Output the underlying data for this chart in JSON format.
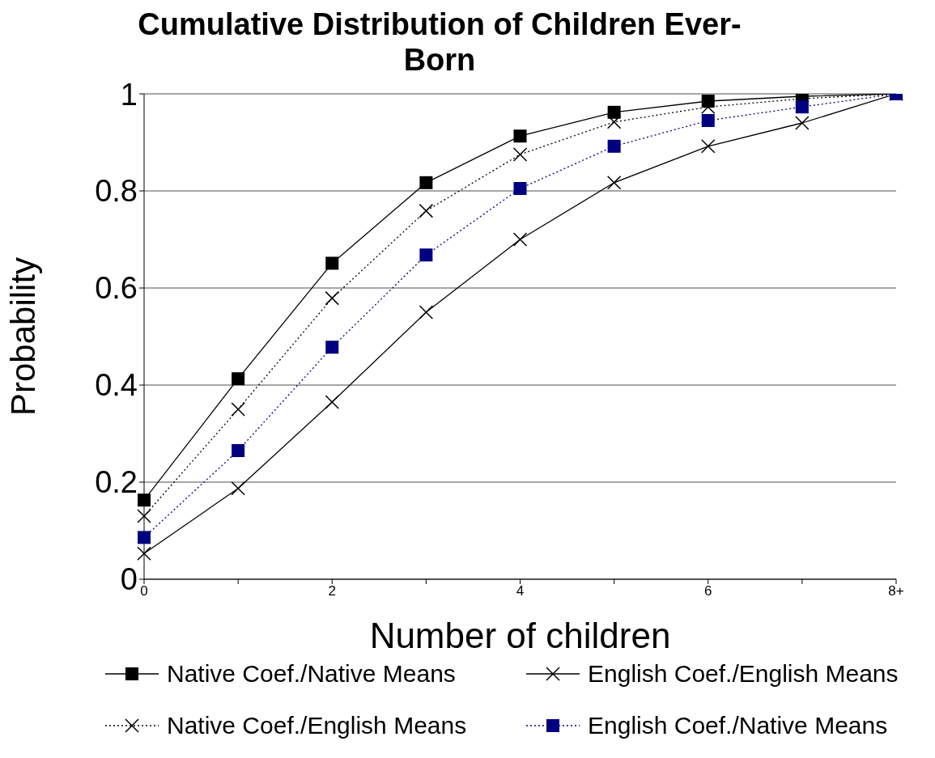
{
  "chart_data": {
    "type": "line",
    "title": "Cumulative Distribution of Children Ever-Born",
    "xlabel": "Number of children",
    "ylabel": "Probability",
    "categories": [
      "0",
      null,
      "2",
      null,
      "4",
      null,
      "6",
      null,
      "8+"
    ],
    "series": [
      {
        "name": "Native Coef./Native Means",
        "color": "#000000",
        "marker": "square",
        "line_style": "solid",
        "values": [
          0.163,
          0.413,
          0.651,
          0.817,
          0.913,
          0.962,
          0.985,
          0.995,
          1
        ]
      },
      {
        "name": "English Coef./English Means",
        "color": "#000000",
        "marker": "cross",
        "line_style": "solid",
        "values": [
          0.053,
          0.187,
          0.365,
          0.55,
          0.7,
          0.817,
          0.892,
          0.94,
          1
        ]
      },
      {
        "name": "Native Coef./English Means",
        "color": "#000000",
        "marker": "cross",
        "line_style": "dotted",
        "values": [
          0.13,
          0.35,
          0.579,
          0.759,
          0.875,
          0.942,
          0.973,
          0.99,
          1
        ]
      },
      {
        "name": "English Coef./Native Means",
        "color": "#000080",
        "marker": "square",
        "line_style": "dotted",
        "values": [
          0.086,
          0.265,
          0.478,
          0.668,
          0.805,
          0.892,
          0.945,
          0.973,
          1
        ]
      }
    ],
    "ylim": [
      0,
      1
    ],
    "yticks": [
      0,
      0.2,
      0.4,
      0.6,
      0.8,
      1
    ],
    "grid": "y",
    "legend": "bottom"
  }
}
